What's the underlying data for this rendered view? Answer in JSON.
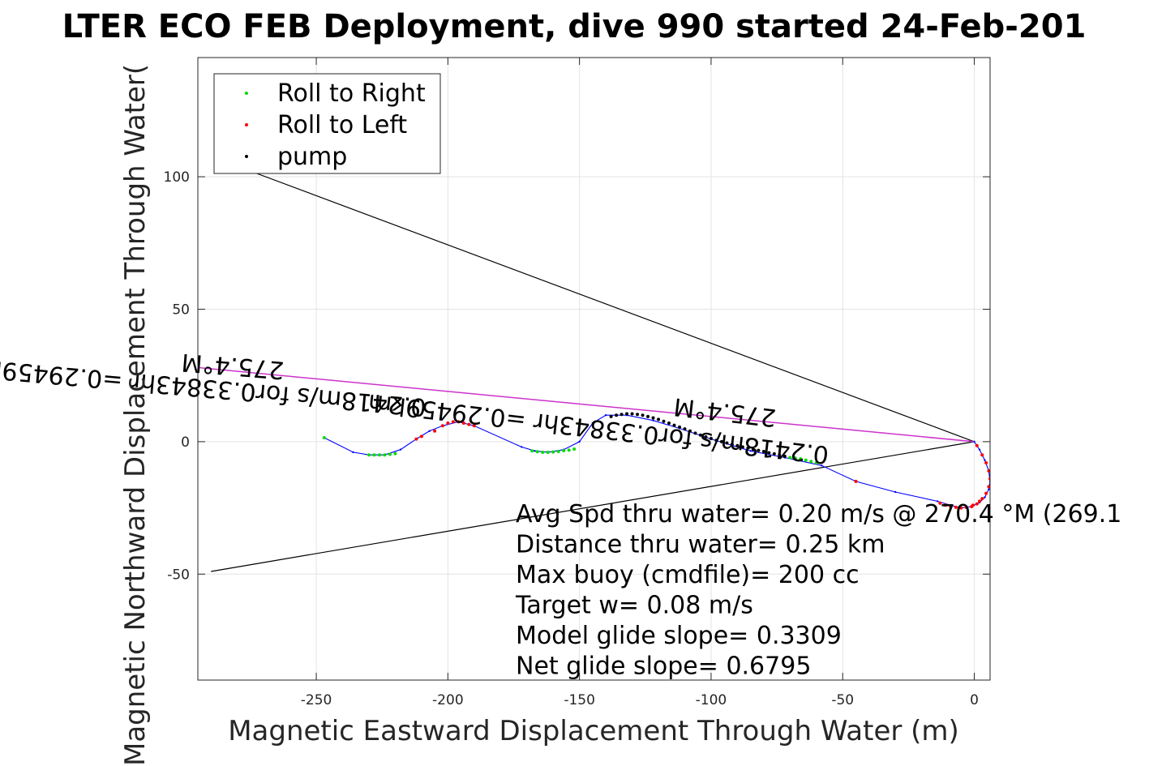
{
  "chart_data": {
    "type": "scatter",
    "title": "LTER ECO FEB Deployment, dive 990 started 24-Feb-201",
    "xlabel": "Magnetic Eastward Displacement Through Water (m)",
    "ylabel": "Magnetic Northward Displacement Through Water(",
    "xlim": [
      -295,
      6
    ],
    "ylim": [
      -90,
      145
    ],
    "xticks": [
      -250,
      -200,
      -150,
      -100,
      -50,
      0
    ],
    "yticks": [
      -50,
      0,
      50,
      100
    ],
    "xtick_labels": [
      "-250",
      "-200",
      "-150",
      "-100",
      "-50",
      "0"
    ],
    "ytick_labels": [
      "-50",
      "0",
      "50",
      "100"
    ],
    "grid": true,
    "legend_position": "top-left",
    "legend": [
      {
        "label": "Roll to Right",
        "color": "#00dd00"
      },
      {
        "label": "Roll to Left",
        "color": "#ff0000"
      },
      {
        "label": "pump",
        "color": "#000000"
      }
    ],
    "colors": {
      "track": "#0000ff",
      "heading_line": "#cc33cc",
      "cone": "#000000"
    },
    "track": {
      "x": [
        0,
        2,
        4,
        5.5,
        6,
        5.5,
        4,
        2,
        -1,
        -5,
        -9,
        -14,
        -30,
        -45,
        -58,
        -72,
        -85,
        -100,
        -112,
        -122,
        -132,
        -140,
        -145,
        -150,
        -156,
        -162,
        -167,
        -172,
        -190,
        -196,
        -202,
        -207,
        -212,
        -218,
        -224,
        -230,
        -236,
        -247
      ],
      "y": [
        0,
        -3,
        -7,
        -11,
        -15,
        -18,
        -21,
        -23,
        -24.5,
        -25,
        -24,
        -22.5,
        -19,
        -15,
        -9,
        -6,
        -3.5,
        1,
        5,
        8,
        10,
        10,
        7,
        0,
        -3,
        -4,
        -3.5,
        -2,
        6,
        7.5,
        6,
        4,
        1,
        -3,
        -5,
        -5,
        -4,
        1.5
      ]
    },
    "roll_right": {
      "x": [
        -247,
        -226,
        -224,
        -222,
        -220,
        -228,
        -230,
        -158,
        -160,
        -162,
        -164,
        -166,
        -168,
        -156,
        -154,
        -152,
        -64,
        -66,
        -62,
        -60,
        -68,
        -70
      ],
      "y": [
        1.5,
        -5,
        -5,
        -4.8,
        -4.5,
        -5,
        -5,
        -3.7,
        -3.9,
        -4,
        -4,
        -3.8,
        -3.5,
        -3.4,
        -3.2,
        -2.8,
        -7,
        -6.5,
        -7.5,
        -8,
        -6.2,
        -6
      ]
    },
    "roll_left": {
      "x": [
        -190,
        -192,
        -194,
        -196,
        -198,
        -200,
        -202,
        -205,
        -45,
        -1,
        -3,
        -5,
        -7,
        -9,
        -11,
        -13,
        1,
        3,
        4.5,
        5.5,
        6,
        5.5,
        4.5,
        3,
        2,
        1,
        -0.5,
        -210,
        -212
      ],
      "y": [
        6,
        6.5,
        7,
        7.5,
        7.5,
        7,
        6,
        4,
        -15,
        -24.5,
        -24.8,
        -25,
        -24.8,
        -24.5,
        -24,
        -23.2,
        -1.5,
        -5,
        -8,
        -11,
        -14,
        -17,
        -19.5,
        -21.5,
        -22.5,
        -23.5,
        -24,
        2,
        1
      ]
    },
    "pump": {
      "x": [
        -72,
        -74,
        -76,
        -78,
        -80,
        -82,
        -84,
        -86,
        -88,
        -90,
        -92,
        -94,
        -96,
        -98,
        -100,
        -102,
        -104,
        -106,
        -108,
        -110,
        -112,
        -114,
        -116,
        -118,
        -120,
        -122,
        -124,
        -126,
        -128,
        -130,
        -132,
        -134,
        -136,
        -138
      ],
      "y": [
        -5.5,
        -5,
        -4.6,
        -4.2,
        -3.7,
        -3.3,
        -2.9,
        -2.4,
        -2,
        -1.5,
        -1,
        -0.5,
        0,
        0.5,
        1.2,
        1.8,
        2.5,
        3.2,
        4,
        4.8,
        5.5,
        6.2,
        7,
        7.7,
        8.4,
        9,
        9.5,
        10,
        10.3,
        10.5,
        10.5,
        10.3,
        10,
        9.5
      ]
    },
    "heading_line": {
      "x": [
        0,
        -295
      ],
      "y": [
        0,
        28
      ]
    },
    "cone_lines": [
      {
        "x": [
          0,
          -280
        ],
        "y": [
          0,
          104
        ]
      },
      {
        "x": [
          0,
          -290
        ],
        "y": [
          0,
          -49
        ]
      }
    ],
    "annotations": [
      {
        "text": "275.4°M",
        "x": -262,
        "y": 30,
        "rotate": 184.6
      },
      {
        "text": "0.2418m/s for0.33843hr =0.29459km",
        "x": -208,
        "y": 16,
        "rotate": 185
      },
      {
        "text": "275.4°M",
        "x": -75,
        "y": 12,
        "rotate": 186.5
      },
      {
        "text": "0.2418m/s for0.33843hr =0.29459km",
        "x": -55,
        "y": -2,
        "rotate": 186.5
      }
    ],
    "stats": [
      "Avg Spd thru water=  0.20 m/s @ 270.4 °M (269.1",
      "Distance thru water=  0.25 km",
      "Max buoy (cmdfile)= 200 cc",
      "Target w= 0.08 m/s",
      "Model glide slope= 0.3309",
      "Net glide slope= 0.6795"
    ]
  }
}
